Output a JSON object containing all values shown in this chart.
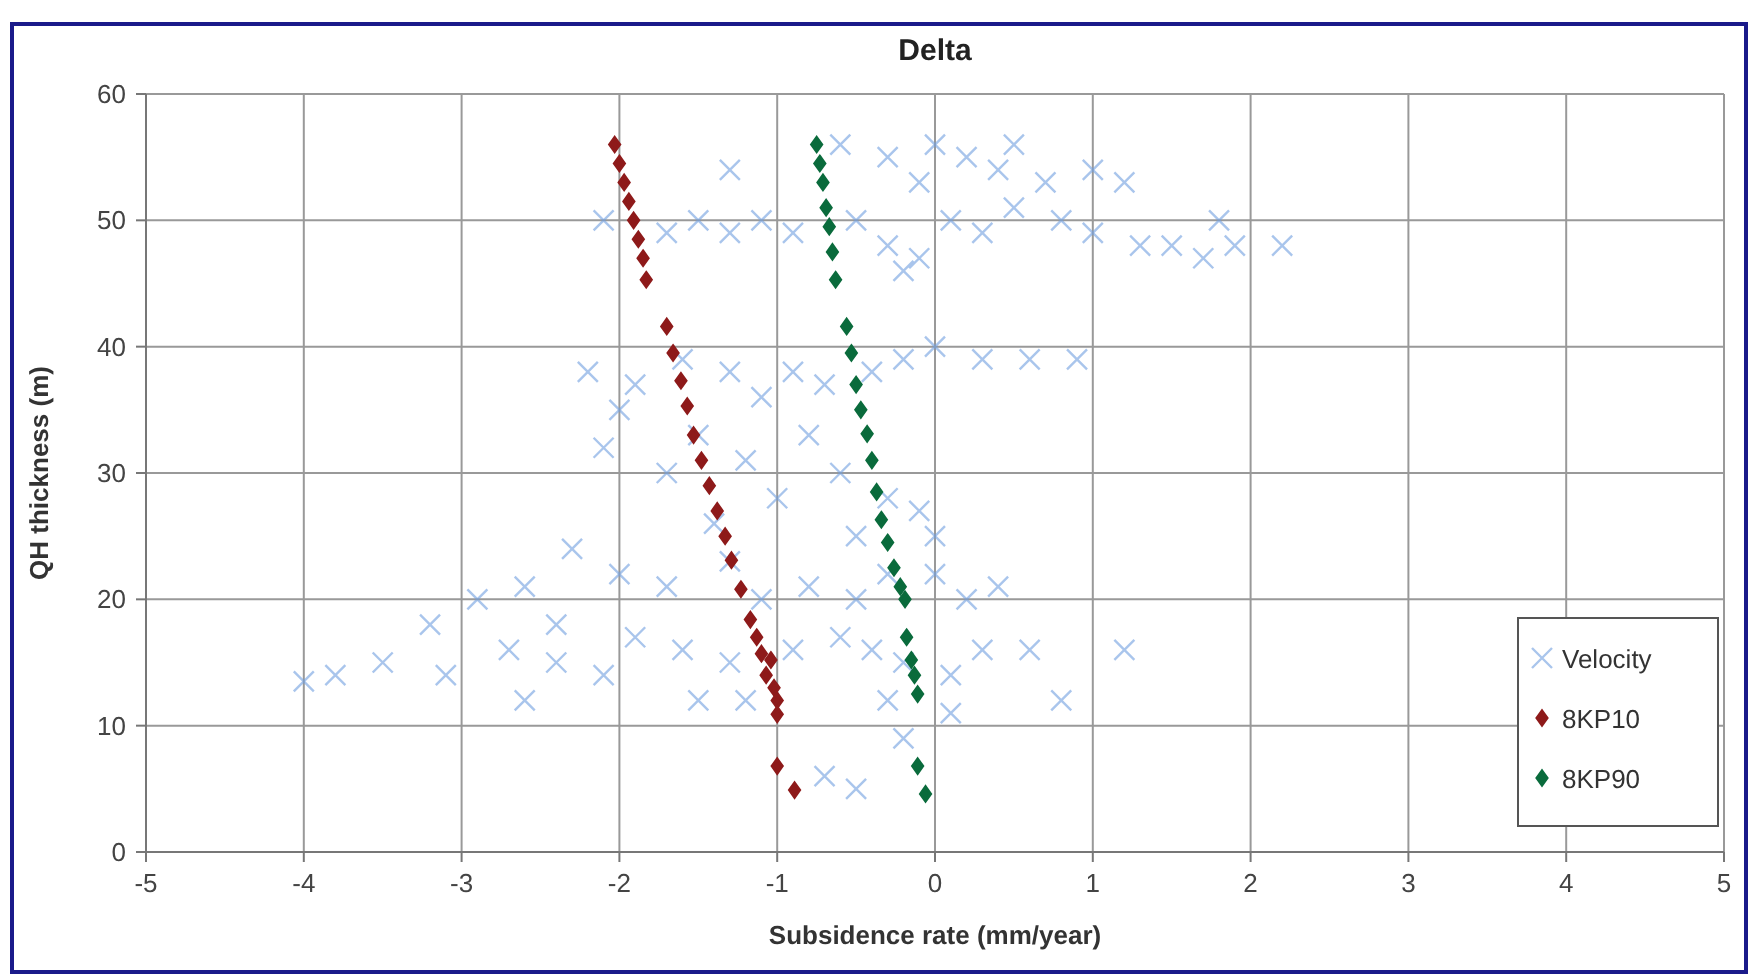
{
  "chart_data": {
    "type": "scatter",
    "title": "Delta",
    "xlabel": "Subsidence rate (mm/year)",
    "ylabel": "QH thickness (m)",
    "xlim": [
      -5,
      5
    ],
    "xticks": [
      -5,
      -4,
      -3,
      -2,
      -1,
      0,
      1,
      2,
      3,
      4,
      5
    ],
    "ylim": [
      0,
      60
    ],
    "yticks": [
      0,
      10,
      20,
      30,
      40,
      50,
      60
    ],
    "grid": true,
    "legend": "bottom right",
    "series": [
      {
        "name": "Velocity",
        "color": "#6f9ee0",
        "marker": "cross",
        "x": [
          -0.6,
          -0.3,
          0,
          0.2,
          0.4,
          0.7,
          1,
          1.2,
          -1.3,
          -0.1,
          0.5,
          -2.1,
          -1.7,
          -1.5,
          -1.3,
          -1.1,
          -0.9,
          -0.5,
          -0.3,
          -0.1,
          -0.2,
          0.1,
          0.3,
          0.5,
          0.8,
          1,
          1.3,
          1.5,
          1.7,
          1.9,
          2.2,
          1.8,
          -2.2,
          -1.9,
          -1.6,
          -1.3,
          -1.1,
          -0.9,
          -0.7,
          -0.4,
          -0.2,
          0,
          0.3,
          0.6,
          0.9,
          -2,
          -1.5,
          -2.1,
          -1.7,
          -1.2,
          -0.8,
          -0.6,
          -0.3,
          -1,
          -1.4,
          0,
          -0.1,
          -0.5,
          -2.3,
          -2.6,
          -2.9,
          -3.2,
          -2,
          -1.7,
          -1.3,
          -1.1,
          -0.8,
          -0.5,
          -0.3,
          0,
          0.2,
          0.4,
          -2.4,
          -3.5,
          -3.8,
          -4,
          -3.1,
          -2.7,
          -2.4,
          -2.1,
          -1.9,
          -1.6,
          -1.3,
          -1.2,
          -0.9,
          -0.6,
          -0.4,
          -0.2,
          0.1,
          0.3,
          0.6,
          0.8,
          1.2,
          -0.3,
          -0.2,
          0.1,
          -0.7,
          -0.5,
          -2.6,
          -1.5
        ],
        "values": [
          56,
          55,
          56,
          55,
          54,
          53,
          54,
          53,
          54,
          53,
          56,
          50,
          49,
          50,
          49,
          50,
          49,
          50,
          48,
          47,
          46,
          50,
          49,
          51,
          50,
          49,
          48,
          48,
          47,
          48,
          48,
          50,
          38,
          37,
          39,
          38,
          36,
          38,
          37,
          38,
          39,
          40,
          39,
          39,
          39,
          35,
          33,
          32,
          30,
          31,
          33,
          30,
          28,
          28,
          26,
          25,
          27,
          25,
          24,
          21,
          20,
          18,
          22,
          21,
          23,
          20,
          21,
          20,
          22,
          22,
          20,
          21,
          18,
          15,
          14,
          13.5,
          14,
          16,
          15,
          14,
          17,
          16,
          15,
          12,
          16,
          17,
          16,
          15,
          14,
          16,
          16,
          12,
          16,
          12,
          9,
          11,
          6,
          5,
          12,
          12
        ]
      },
      {
        "name": "8KP10",
        "color": "#8e1a1a",
        "marker": "diamond",
        "x": [
          -2.03,
          -2,
          -1.97,
          -1.94,
          -1.91,
          -1.88,
          -1.85,
          -1.83,
          -1.7,
          -1.66,
          -1.61,
          -1.57,
          -1.53,
          -1.48,
          -1.43,
          -1.38,
          -1.33,
          -1.29,
          -1.23,
          -1.17,
          -1.13,
          -1.1,
          -1.04,
          -1.07,
          -1.02,
          -1,
          -1,
          -1,
          -0.89
        ],
        "values": [
          56,
          54.5,
          53,
          51.5,
          50,
          48.5,
          47,
          45.3,
          41.6,
          39.5,
          37.3,
          35.3,
          33,
          31,
          29,
          27,
          25,
          23.1,
          20.8,
          18.4,
          17,
          15.7,
          15.2,
          14,
          13,
          12,
          10.9,
          6.8,
          4.9
        ]
      },
      {
        "name": "8KP90",
        "color": "#0a6b3c",
        "marker": "diamond",
        "x": [
          -0.75,
          -0.73,
          -0.71,
          -0.69,
          -0.67,
          -0.65,
          -0.63,
          -0.56,
          -0.53,
          -0.5,
          -0.47,
          -0.43,
          -0.4,
          -0.37,
          -0.34,
          -0.3,
          -0.26,
          -0.22,
          -0.19,
          -0.18,
          -0.15,
          -0.13,
          -0.11,
          -0.11,
          -0.06
        ],
        "values": [
          56,
          54.5,
          53,
          51,
          49.5,
          47.5,
          45.3,
          41.6,
          39.5,
          37,
          35,
          33.1,
          31,
          28.5,
          26.3,
          24.5,
          22.5,
          21,
          20,
          17,
          15.2,
          14,
          12.5,
          6.8,
          4.6
        ]
      }
    ]
  }
}
